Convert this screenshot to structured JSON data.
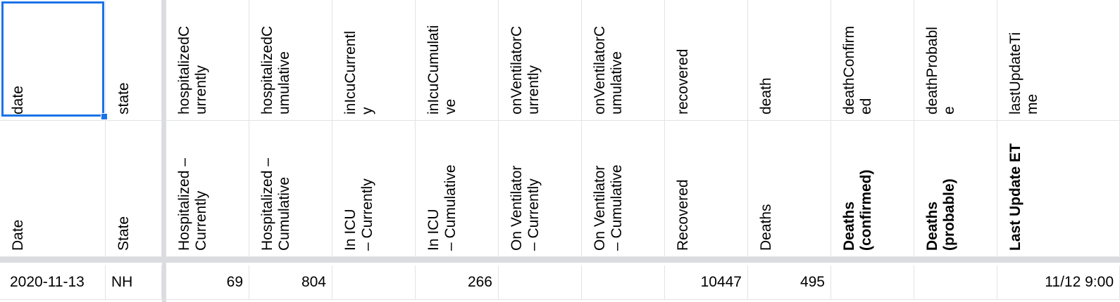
{
  "field_names": [
    "date",
    "state",
    "hospitalizedC\nurrently",
    "hospitalizedC\numulative",
    "inIcuCurrentl\ny",
    "inIcuCumulati\nve",
    "onVentilatorC\nurrently",
    "onVentilatorC\numulative",
    "recovered",
    "death",
    "deathConfirm\ned",
    "deathProbabl\ne",
    "lastUpdateTi\nme"
  ],
  "display_names": [
    "Date",
    "State",
    "Hospitalized –\nCurrently",
    "Hospitalized –\nCumulative",
    "In ICU\n– Currently",
    "In ICU\n– Cumulative",
    "On Ventilator\n– Currently",
    "On Ventilator\n– Cumulative",
    "Recovered",
    "Deaths",
    "Deaths\n(confirmed)",
    "Deaths\n(probable)",
    "Last Update ET"
  ],
  "data_row": [
    "2020-11-13",
    "NH",
    "69",
    "804",
    "",
    "266",
    "",
    "",
    "10447",
    "495",
    "",
    "",
    "11/12 9:00"
  ],
  "colors": {
    "selection": "#1a73e8",
    "frozen_separator": "#dadce0",
    "gridline": "#e2e3e3"
  }
}
